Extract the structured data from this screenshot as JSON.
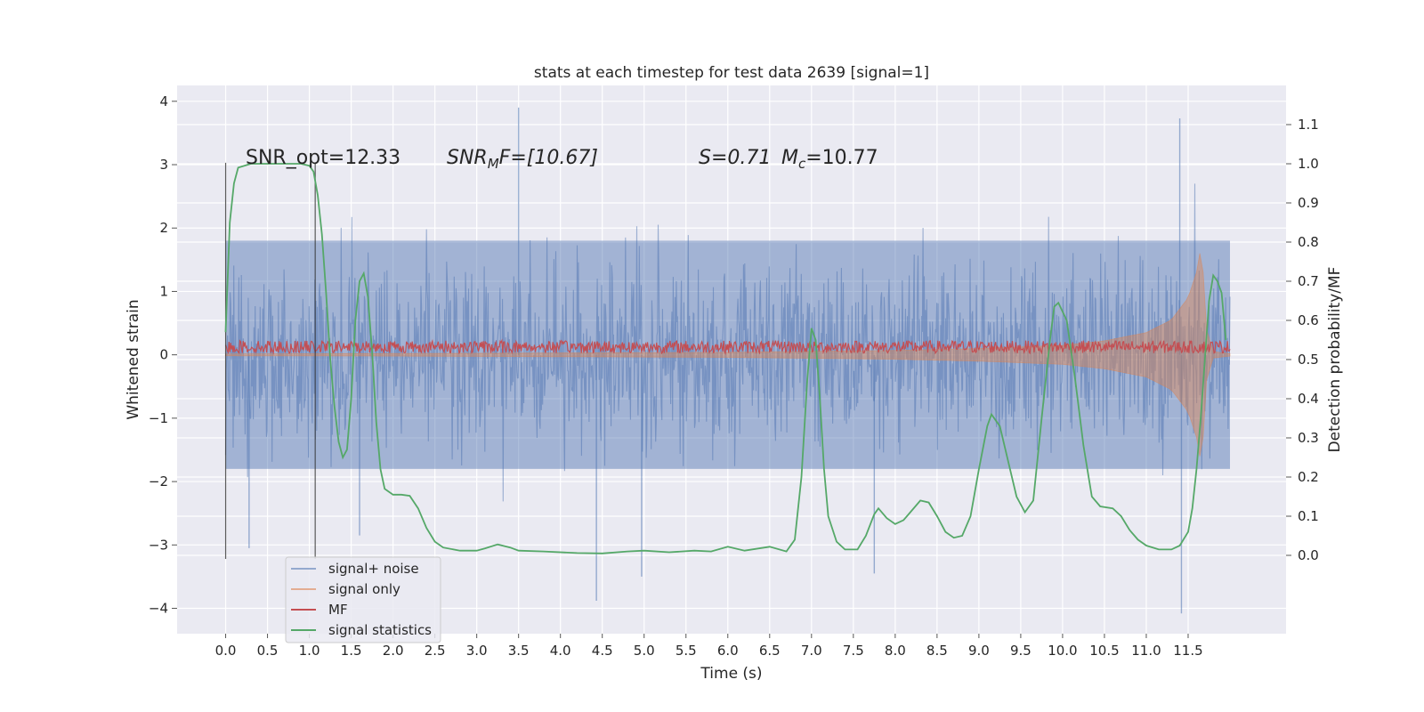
{
  "chart_data": {
    "type": "line",
    "title": "stats at each timestep for test data 2639 [signal=1]",
    "xlabel": "Time (s)",
    "ylabel": "Whitened strain",
    "y2label": "Detection probability/MF",
    "xlim": [
      -0.58,
      12.67
    ],
    "ylim": [
      -4.4,
      4.25
    ],
    "y2lim": [
      -0.2,
      1.2
    ],
    "x_ticks": [
      0.0,
      0.5,
      1.0,
      1.5,
      2.0,
      2.5,
      3.0,
      3.5,
      4.0,
      4.5,
      5.0,
      5.5,
      6.0,
      6.5,
      7.0,
      7.5,
      8.0,
      8.5,
      9.0,
      9.5,
      10.0,
      10.5,
      11.0,
      11.5
    ],
    "y_ticks": [
      -4,
      -3,
      -2,
      -1,
      0,
      1,
      2,
      3,
      4
    ],
    "y2_ticks": [
      0.0,
      0.1,
      0.2,
      0.3,
      0.4,
      0.5,
      0.6,
      0.7,
      0.8,
      0.9,
      1.0,
      1.1
    ],
    "x_tick_labels": [
      "0.0",
      "0.5",
      "1.0",
      "1.5",
      "2.0",
      "2.5",
      "3.0",
      "3.5",
      "4.0",
      "4.5",
      "5.0",
      "5.5",
      "6.0",
      "6.5",
      "7.0",
      "7.5",
      "8.0",
      "8.5",
      "9.0",
      "9.5",
      "10.0",
      "10.5",
      "11.0",
      "11.5"
    ],
    "y_tick_labels": [
      "−4",
      "−3",
      "−2",
      "−1",
      "0",
      "1",
      "2",
      "3",
      "4"
    ],
    "y2_tick_labels": [
      "0.0",
      "0.1",
      "0.2",
      "0.3",
      "0.4",
      "0.5",
      "0.6",
      "0.7",
      "0.8",
      "0.9",
      "1.0",
      "1.1"
    ],
    "grid": true,
    "legend_position": "bottom-left",
    "annotations": {
      "snr_opt": "SNR_opt=12.33",
      "snr_mf_prefix": "SNR",
      "snr_mf_sub": "M",
      "snr_mf_suffix": "F=[10.67]",
      "s_value": "S=0.71",
      "mc_prefix": "M",
      "mc_sub": "c",
      "mc_suffix": "=10.77"
    },
    "vertical_lines": [
      0.0,
      1.07
    ],
    "noise_span": [
      0.0,
      12.0
    ],
    "series": [
      {
        "name": "signal+ noise",
        "color": "#4c72b0",
        "kind": "noise",
        "typical_abs": 1.8,
        "extreme_points": [
          [
            0.28,
            -3.05
          ],
          [
            1.6,
            -2.85
          ],
          [
            3.5,
            3.9
          ],
          [
            4.43,
            -3.88
          ],
          [
            4.97,
            -3.5
          ],
          [
            7.75,
            -3.45
          ],
          [
            11.4,
            3.73
          ],
          [
            11.42,
            -4.08
          ]
        ]
      },
      {
        "name": "signal only",
        "color": "#dd8452",
        "kind": "chirp",
        "envelope": [
          [
            0.0,
            0.015
          ],
          [
            2.0,
            0.02
          ],
          [
            4.0,
            0.03
          ],
          [
            6.0,
            0.04
          ],
          [
            8.0,
            0.07
          ],
          [
            9.0,
            0.1
          ],
          [
            10.0,
            0.15
          ],
          [
            10.5,
            0.22
          ],
          [
            11.0,
            0.35
          ],
          [
            11.3,
            0.55
          ],
          [
            11.5,
            0.9
          ],
          [
            11.6,
            1.3
          ],
          [
            11.66,
            1.75
          ],
          [
            11.72,
            0.4
          ],
          [
            11.8,
            0.05
          ],
          [
            12.0,
            0.02
          ]
        ]
      },
      {
        "name": "MF",
        "color": "#c44e52",
        "kind": "mf",
        "level": 0.125,
        "amplitude": 0.1
      },
      {
        "name": "signal statistics",
        "color": "#55a868",
        "kind": "line",
        "axis": "right",
        "points": [
          [
            0.0,
            0.57
          ],
          [
            0.05,
            0.85
          ],
          [
            0.1,
            0.95
          ],
          [
            0.15,
            0.99
          ],
          [
            0.3,
            1.0
          ],
          [
            0.6,
            1.0
          ],
          [
            0.9,
            1.0
          ],
          [
            1.0,
            0.995
          ],
          [
            1.05,
            0.98
          ],
          [
            1.1,
            0.92
          ],
          [
            1.15,
            0.82
          ],
          [
            1.2,
            0.67
          ],
          [
            1.25,
            0.5
          ],
          [
            1.3,
            0.38
          ],
          [
            1.35,
            0.29
          ],
          [
            1.4,
            0.25
          ],
          [
            1.45,
            0.27
          ],
          [
            1.5,
            0.4
          ],
          [
            1.55,
            0.6
          ],
          [
            1.6,
            0.7
          ],
          [
            1.65,
            0.72
          ],
          [
            1.7,
            0.66
          ],
          [
            1.75,
            0.52
          ],
          [
            1.8,
            0.34
          ],
          [
            1.85,
            0.22
          ],
          [
            1.9,
            0.17
          ],
          [
            2.0,
            0.155
          ],
          [
            2.1,
            0.155
          ],
          [
            2.2,
            0.152
          ],
          [
            2.3,
            0.12
          ],
          [
            2.4,
            0.07
          ],
          [
            2.5,
            0.035
          ],
          [
            2.6,
            0.02
          ],
          [
            2.8,
            0.012
          ],
          [
            3.0,
            0.012
          ],
          [
            3.1,
            0.018
          ],
          [
            3.25,
            0.028
          ],
          [
            3.4,
            0.02
          ],
          [
            3.5,
            0.012
          ],
          [
            3.8,
            0.01
          ],
          [
            4.2,
            0.006
          ],
          [
            4.5,
            0.005
          ],
          [
            4.8,
            0.01
          ],
          [
            5.0,
            0.012
          ],
          [
            5.3,
            0.008
          ],
          [
            5.6,
            0.012
          ],
          [
            5.8,
            0.01
          ],
          [
            6.0,
            0.022
          ],
          [
            6.2,
            0.012
          ],
          [
            6.5,
            0.022
          ],
          [
            6.7,
            0.01
          ],
          [
            6.8,
            0.04
          ],
          [
            6.88,
            0.2
          ],
          [
            6.95,
            0.45
          ],
          [
            7.0,
            0.58
          ],
          [
            7.05,
            0.55
          ],
          [
            7.1,
            0.4
          ],
          [
            7.15,
            0.22
          ],
          [
            7.2,
            0.1
          ],
          [
            7.3,
            0.035
          ],
          [
            7.4,
            0.015
          ],
          [
            7.55,
            0.015
          ],
          [
            7.65,
            0.05
          ],
          [
            7.75,
            0.105
          ],
          [
            7.8,
            0.12
          ],
          [
            7.9,
            0.095
          ],
          [
            8.0,
            0.08
          ],
          [
            8.1,
            0.09
          ],
          [
            8.2,
            0.115
          ],
          [
            8.3,
            0.14
          ],
          [
            8.4,
            0.135
          ],
          [
            8.5,
            0.1
          ],
          [
            8.6,
            0.06
          ],
          [
            8.7,
            0.045
          ],
          [
            8.8,
            0.05
          ],
          [
            8.9,
            0.1
          ],
          [
            9.0,
            0.22
          ],
          [
            9.1,
            0.33
          ],
          [
            9.15,
            0.36
          ],
          [
            9.25,
            0.33
          ],
          [
            9.35,
            0.24
          ],
          [
            9.45,
            0.15
          ],
          [
            9.55,
            0.11
          ],
          [
            9.65,
            0.14
          ],
          [
            9.75,
            0.35
          ],
          [
            9.85,
            0.55
          ],
          [
            9.9,
            0.635
          ],
          [
            9.95,
            0.645
          ],
          [
            10.05,
            0.6
          ],
          [
            10.15,
            0.45
          ],
          [
            10.25,
            0.28
          ],
          [
            10.35,
            0.15
          ],
          [
            10.45,
            0.125
          ],
          [
            10.6,
            0.12
          ],
          [
            10.7,
            0.1
          ],
          [
            10.8,
            0.065
          ],
          [
            10.9,
            0.04
          ],
          [
            11.0,
            0.025
          ],
          [
            11.15,
            0.015
          ],
          [
            11.3,
            0.015
          ],
          [
            11.4,
            0.025
          ],
          [
            11.5,
            0.06
          ],
          [
            11.55,
            0.12
          ],
          [
            11.6,
            0.22
          ],
          [
            11.65,
            0.35
          ],
          [
            11.7,
            0.5
          ],
          [
            11.75,
            0.65
          ],
          [
            11.8,
            0.715
          ],
          [
            11.85,
            0.7
          ],
          [
            11.9,
            0.67
          ],
          [
            11.95,
            0.55
          ]
        ]
      }
    ]
  }
}
